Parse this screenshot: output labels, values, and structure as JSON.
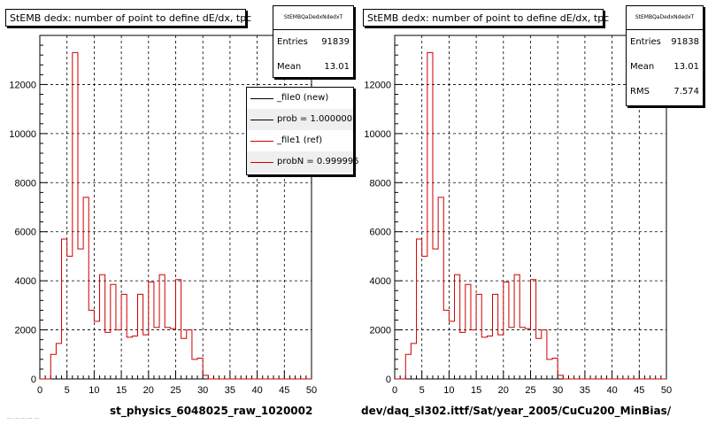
{
  "footer": "... ... ... ... ...",
  "chart_data": [
    {
      "type": "bar",
      "title": "StEMB dedx: number of point to define dE/dx, tpc",
      "xlabel": "st_physics_6048025_raw_1020002",
      "ylabel": "",
      "xlim": [
        0,
        50
      ],
      "ylim": [
        0,
        14000
      ],
      "x_ticks": [
        0,
        5,
        10,
        15,
        20,
        25,
        30,
        35,
        40,
        45,
        50
      ],
      "y_ticks": [
        0,
        2000,
        4000,
        6000,
        8000,
        10000,
        12000
      ],
      "grid": true,
      "bin_width": 1,
      "bin_edges_start": 0,
      "values": [
        0,
        0,
        1000,
        1450,
        5700,
        5000,
        13300,
        5300,
        7400,
        2800,
        2350,
        4250,
        1900,
        3850,
        2000,
        3450,
        1700,
        1750,
        3450,
        1800,
        3950,
        2100,
        4250,
        2100,
        2050,
        4050,
        1650,
        2000,
        800,
        850,
        150,
        0,
        0,
        0,
        0,
        0,
        0,
        0,
        0,
        0,
        0,
        0,
        0,
        0,
        0,
        0,
        0,
        0,
        0,
        0
      ],
      "stats": {
        "name": "StEMBQaDedxNdedxT",
        "entries_label": "Entries",
        "entries": "91839",
        "mean_label": "Mean",
        "mean": "13.01"
      },
      "legend": {
        "position": "top-right",
        "entries": [
          {
            "label": "_file0 (new)",
            "color": "#000000"
          },
          {
            "label": "prob = 1.000000",
            "color": "#000000"
          },
          {
            "label": "_file1 (ref)",
            "color": "#cc0000"
          },
          {
            "label": "probN = 0.999995",
            "color": "#cc0000"
          }
        ]
      },
      "line_color": "#cc0000"
    },
    {
      "type": "bar",
      "title": "StEMB dedx: number of point to define dE/dx, tpc",
      "xlabel": "dev/daq_sl302.ittf/Sat/year_2005/CuCu200_MinBias/",
      "ylabel": "",
      "xlim": [
        0,
        50
      ],
      "ylim": [
        0,
        14000
      ],
      "x_ticks": [
        0,
        5,
        10,
        15,
        20,
        25,
        30,
        35,
        40,
        45,
        50
      ],
      "y_ticks": [
        0,
        2000,
        4000,
        6000,
        8000,
        10000,
        12000
      ],
      "grid": true,
      "bin_width": 1,
      "bin_edges_start": 0,
      "values": [
        0,
        0,
        1000,
        1450,
        5700,
        5000,
        13300,
        5300,
        7400,
        2800,
        2350,
        4250,
        1900,
        3850,
        2000,
        3450,
        1700,
        1750,
        3450,
        1800,
        3950,
        2100,
        4250,
        2100,
        2050,
        4050,
        1650,
        2000,
        800,
        850,
        150,
        0,
        0,
        0,
        0,
        0,
        0,
        0,
        0,
        0,
        0,
        0,
        0,
        0,
        0,
        0,
        0,
        0,
        0,
        0
      ],
      "stats": {
        "name": "StEMBQaDedxNdedxT",
        "entries_label": "Entries",
        "entries": "91838",
        "mean_label": "Mean",
        "mean": "13.01",
        "rms_label": "RMS",
        "rms": "7.574"
      },
      "line_color": "#cc0000"
    }
  ]
}
